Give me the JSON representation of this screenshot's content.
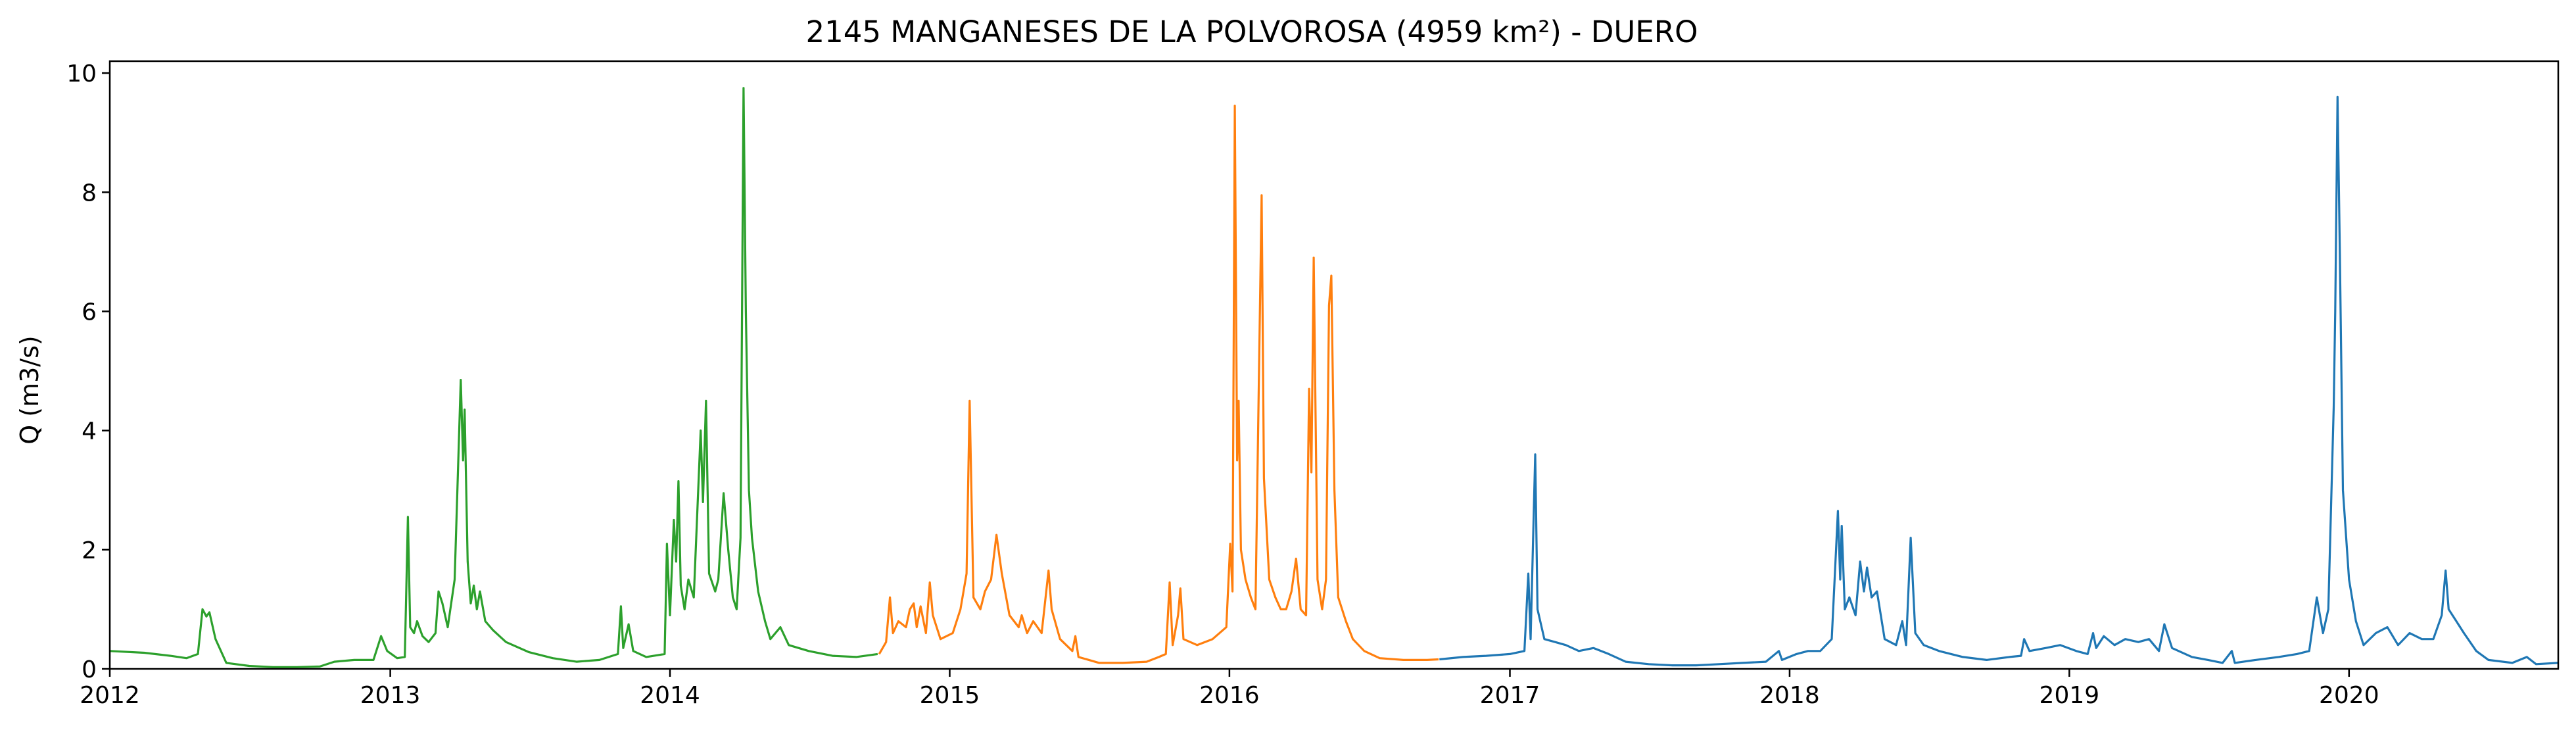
{
  "chart_data": {
    "type": "line",
    "title": "2145 MANGANESES DE LA POLVOROSA (4959 km²) - DUERO",
    "xlabel": "",
    "ylabel": "Q (m3/s)",
    "xlim": [
      "2012-01-01",
      "2020-09-30"
    ],
    "ylim": [
      0,
      10.2
    ],
    "xticks": [
      "2012",
      "2013",
      "2014",
      "2015",
      "2016",
      "2017",
      "2018",
      "2019",
      "2020"
    ],
    "yticks": [
      "0",
      "2",
      "4",
      "6",
      "8",
      "10"
    ],
    "grid": false,
    "series": [
      {
        "color": "#2ca02c",
        "points": [
          [
            "2012-01-01",
            0.3
          ],
          [
            "2012-02-15",
            0.27
          ],
          [
            "2012-03-20",
            0.22
          ],
          [
            "2012-04-10",
            0.18
          ],
          [
            "2012-04-25",
            0.25
          ],
          [
            "2012-05-01",
            1.0
          ],
          [
            "2012-05-06",
            0.88
          ],
          [
            "2012-05-10",
            0.95
          ],
          [
            "2012-05-18",
            0.5
          ],
          [
            "2012-06-01",
            0.1
          ],
          [
            "2012-07-01",
            0.05
          ],
          [
            "2012-08-01",
            0.03
          ],
          [
            "2012-09-01",
            0.03
          ],
          [
            "2012-10-01",
            0.04
          ],
          [
            "2012-10-20",
            0.12
          ],
          [
            "2012-11-15",
            0.15
          ],
          [
            "2012-12-10",
            0.15
          ],
          [
            "2012-12-20",
            0.55
          ],
          [
            "2012-12-28",
            0.3
          ],
          [
            "2013-01-10",
            0.18
          ],
          [
            "2013-01-20",
            0.2
          ],
          [
            "2013-01-24",
            2.55
          ],
          [
            "2013-01-27",
            0.7
          ],
          [
            "2013-02-01",
            0.6
          ],
          [
            "2013-02-05",
            0.8
          ],
          [
            "2013-02-12",
            0.55
          ],
          [
            "2013-02-20",
            0.45
          ],
          [
            "2013-03-01",
            0.6
          ],
          [
            "2013-03-05",
            1.3
          ],
          [
            "2013-03-10",
            1.1
          ],
          [
            "2013-03-17",
            0.7
          ],
          [
            "2013-03-26",
            1.5
          ],
          [
            "2013-04-03",
            4.85
          ],
          [
            "2013-04-06",
            3.5
          ],
          [
            "2013-04-08",
            4.35
          ],
          [
            "2013-04-12",
            1.8
          ],
          [
            "2013-04-16",
            1.1
          ],
          [
            "2013-04-20",
            1.4
          ],
          [
            "2013-04-24",
            1.0
          ],
          [
            "2013-04-28",
            1.3
          ],
          [
            "2013-05-05",
            0.8
          ],
          [
            "2013-05-15",
            0.65
          ],
          [
            "2013-06-01",
            0.45
          ],
          [
            "2013-07-01",
            0.28
          ],
          [
            "2013-08-01",
            0.18
          ],
          [
            "2013-09-01",
            0.12
          ],
          [
            "2013-10-01",
            0.15
          ],
          [
            "2013-10-25",
            0.25
          ],
          [
            "2013-10-29",
            1.05
          ],
          [
            "2013-11-01",
            0.35
          ],
          [
            "2013-11-08",
            0.75
          ],
          [
            "2013-11-14",
            0.3
          ],
          [
            "2013-12-01",
            0.2
          ],
          [
            "2013-12-25",
            0.25
          ],
          [
            "2013-12-28",
            2.1
          ],
          [
            "2014-01-01",
            0.9
          ],
          [
            "2014-01-06",
            2.5
          ],
          [
            "2014-01-09",
            1.8
          ],
          [
            "2014-01-12",
            3.15
          ],
          [
            "2014-01-15",
            1.4
          ],
          [
            "2014-01-20",
            1.0
          ],
          [
            "2014-01-25",
            1.5
          ],
          [
            "2014-02-01",
            1.2
          ],
          [
            "2014-02-10",
            4.0
          ],
          [
            "2014-02-13",
            2.8
          ],
          [
            "2014-02-17",
            4.5
          ],
          [
            "2014-02-21",
            1.6
          ],
          [
            "2014-03-01",
            1.3
          ],
          [
            "2014-03-05",
            1.5
          ],
          [
            "2014-03-12",
            2.95
          ],
          [
            "2014-03-18",
            2.0
          ],
          [
            "2014-03-24",
            1.2
          ],
          [
            "2014-03-29",
            1.0
          ],
          [
            "2014-04-03",
            2.2
          ],
          [
            "2014-04-07",
            9.75
          ],
          [
            "2014-04-10",
            6.0
          ],
          [
            "2014-04-14",
            3.0
          ],
          [
            "2014-04-18",
            2.2
          ],
          [
            "2014-04-26",
            1.3
          ],
          [
            "2014-05-05",
            0.8
          ],
          [
            "2014-05-12",
            0.5
          ],
          [
            "2014-05-25",
            0.7
          ],
          [
            "2014-06-05",
            0.4
          ],
          [
            "2014-07-01",
            0.3
          ],
          [
            "2014-08-01",
            0.22
          ],
          [
            "2014-09-01",
            0.2
          ],
          [
            "2014-09-29",
            0.25
          ]
        ]
      },
      {
        "color": "#ff7f0e",
        "points": [
          [
            "2014-10-01",
            0.25
          ],
          [
            "2014-10-10",
            0.45
          ],
          [
            "2014-10-15",
            1.2
          ],
          [
            "2014-10-19",
            0.6
          ],
          [
            "2014-10-26",
            0.8
          ],
          [
            "2014-11-05",
            0.7
          ],
          [
            "2014-11-10",
            1.0
          ],
          [
            "2014-11-15",
            1.1
          ],
          [
            "2014-11-19",
            0.7
          ],
          [
            "2014-11-24",
            1.05
          ],
          [
            "2014-12-01",
            0.6
          ],
          [
            "2014-12-06",
            1.45
          ],
          [
            "2014-12-10",
            0.9
          ],
          [
            "2014-12-20",
            0.5
          ],
          [
            "2015-01-05",
            0.6
          ],
          [
            "2015-01-15",
            1.0
          ],
          [
            "2015-01-23",
            1.6
          ],
          [
            "2015-01-27",
            4.5
          ],
          [
            "2015-02-01",
            1.2
          ],
          [
            "2015-02-10",
            1.0
          ],
          [
            "2015-02-16",
            1.3
          ],
          [
            "2015-02-24",
            1.5
          ],
          [
            "2015-03-03",
            2.25
          ],
          [
            "2015-03-10",
            1.6
          ],
          [
            "2015-03-20",
            0.9
          ],
          [
            "2015-04-01",
            0.7
          ],
          [
            "2015-04-05",
            0.9
          ],
          [
            "2015-04-12",
            0.6
          ],
          [
            "2015-04-20",
            0.8
          ],
          [
            "2015-05-01",
            0.6
          ],
          [
            "2015-05-10",
            1.65
          ],
          [
            "2015-05-14",
            1.0
          ],
          [
            "2015-05-25",
            0.5
          ],
          [
            "2015-06-10",
            0.3
          ],
          [
            "2015-06-14",
            0.55
          ],
          [
            "2015-06-18",
            0.2
          ],
          [
            "2015-07-15",
            0.1
          ],
          [
            "2015-08-15",
            0.1
          ],
          [
            "2015-09-15",
            0.12
          ],
          [
            "2015-10-01",
            0.2
          ],
          [
            "2015-10-10",
            0.25
          ],
          [
            "2015-10-15",
            1.45
          ],
          [
            "2015-10-19",
            0.4
          ],
          [
            "2015-10-26",
            0.9
          ],
          [
            "2015-10-29",
            1.35
          ],
          [
            "2015-11-02",
            0.5
          ],
          [
            "2015-11-20",
            0.4
          ],
          [
            "2015-12-10",
            0.5
          ],
          [
            "2015-12-28",
            0.7
          ],
          [
            "2016-01-02",
            2.1
          ],
          [
            "2016-01-05",
            1.3
          ],
          [
            "2016-01-08",
            9.45
          ],
          [
            "2016-01-11",
            3.5
          ],
          [
            "2016-01-13",
            4.5
          ],
          [
            "2016-01-16",
            2.0
          ],
          [
            "2016-01-22",
            1.5
          ],
          [
            "2016-01-29",
            1.2
          ],
          [
            "2016-02-04",
            1.0
          ],
          [
            "2016-02-12",
            7.95
          ],
          [
            "2016-02-15",
            3.2
          ],
          [
            "2016-02-22",
            1.5
          ],
          [
            "2016-03-01",
            1.2
          ],
          [
            "2016-03-08",
            1.0
          ],
          [
            "2016-03-15",
            1.0
          ],
          [
            "2016-03-22",
            1.3
          ],
          [
            "2016-03-28",
            1.85
          ],
          [
            "2016-04-03",
            1.0
          ],
          [
            "2016-04-10",
            0.9
          ],
          [
            "2016-04-14",
            4.7
          ],
          [
            "2016-04-17",
            3.3
          ],
          [
            "2016-04-20",
            6.9
          ],
          [
            "2016-04-25",
            1.5
          ],
          [
            "2016-05-01",
            1.0
          ],
          [
            "2016-05-06",
            1.5
          ],
          [
            "2016-05-10",
            6.1
          ],
          [
            "2016-05-13",
            6.6
          ],
          [
            "2016-05-17",
            3.0
          ],
          [
            "2016-05-22",
            1.2
          ],
          [
            "2016-06-01",
            0.8
          ],
          [
            "2016-06-10",
            0.5
          ],
          [
            "2016-06-25",
            0.3
          ],
          [
            "2016-07-15",
            0.18
          ],
          [
            "2016-08-15",
            0.15
          ],
          [
            "2016-09-15",
            0.15
          ],
          [
            "2016-09-30",
            0.16
          ]
        ]
      },
      {
        "color": "#1f77b4",
        "points": [
          [
            "2016-10-01",
            0.16
          ],
          [
            "2016-11-01",
            0.2
          ],
          [
            "2016-12-01",
            0.22
          ],
          [
            "2017-01-01",
            0.25
          ],
          [
            "2017-01-20",
            0.3
          ],
          [
            "2017-01-25",
            1.6
          ],
          [
            "2017-01-28",
            0.5
          ],
          [
            "2017-02-03",
            3.6
          ],
          [
            "2017-02-06",
            1.0
          ],
          [
            "2017-02-15",
            0.5
          ],
          [
            "2017-03-01",
            0.45
          ],
          [
            "2017-03-15",
            0.4
          ],
          [
            "2017-04-01",
            0.3
          ],
          [
            "2017-04-20",
            0.35
          ],
          [
            "2017-05-10",
            0.25
          ],
          [
            "2017-06-01",
            0.12
          ],
          [
            "2017-07-01",
            0.08
          ],
          [
            "2017-08-01",
            0.06
          ],
          [
            "2017-09-01",
            0.06
          ],
          [
            "2017-10-01",
            0.08
          ],
          [
            "2017-11-01",
            0.1
          ],
          [
            "2017-12-01",
            0.12
          ],
          [
            "2017-12-18",
            0.3
          ],
          [
            "2017-12-22",
            0.15
          ],
          [
            "2018-01-10",
            0.25
          ],
          [
            "2018-01-25",
            0.3
          ],
          [
            "2018-02-10",
            0.3
          ],
          [
            "2018-02-25",
            0.5
          ],
          [
            "2018-03-05",
            2.65
          ],
          [
            "2018-03-08",
            1.5
          ],
          [
            "2018-03-10",
            2.4
          ],
          [
            "2018-03-14",
            1.0
          ],
          [
            "2018-03-20",
            1.2
          ],
          [
            "2018-03-28",
            0.9
          ],
          [
            "2018-04-03",
            1.8
          ],
          [
            "2018-04-08",
            1.3
          ],
          [
            "2018-04-12",
            1.7
          ],
          [
            "2018-04-18",
            1.2
          ],
          [
            "2018-04-25",
            1.3
          ],
          [
            "2018-05-05",
            0.5
          ],
          [
            "2018-05-20",
            0.4
          ],
          [
            "2018-05-28",
            0.8
          ],
          [
            "2018-06-02",
            0.4
          ],
          [
            "2018-06-08",
            2.2
          ],
          [
            "2018-06-14",
            0.6
          ],
          [
            "2018-06-25",
            0.4
          ],
          [
            "2018-07-15",
            0.3
          ],
          [
            "2018-08-15",
            0.2
          ],
          [
            "2018-09-15",
            0.15
          ],
          [
            "2018-10-15",
            0.2
          ],
          [
            "2018-10-30",
            0.22
          ],
          [
            "2018-11-03",
            0.5
          ],
          [
            "2018-11-10",
            0.3
          ],
          [
            "2018-12-01",
            0.35
          ],
          [
            "2018-12-20",
            0.4
          ],
          [
            "2019-01-10",
            0.3
          ],
          [
            "2019-01-25",
            0.25
          ],
          [
            "2019-02-01",
            0.6
          ],
          [
            "2019-02-05",
            0.35
          ],
          [
            "2019-02-15",
            0.55
          ],
          [
            "2019-03-01",
            0.4
          ],
          [
            "2019-03-15",
            0.5
          ],
          [
            "2019-04-01",
            0.45
          ],
          [
            "2019-04-15",
            0.5
          ],
          [
            "2019-04-28",
            0.3
          ],
          [
            "2019-05-05",
            0.75
          ],
          [
            "2019-05-15",
            0.35
          ],
          [
            "2019-06-10",
            0.2
          ],
          [
            "2019-07-01",
            0.15
          ],
          [
            "2019-07-20",
            0.1
          ],
          [
            "2019-08-01",
            0.3
          ],
          [
            "2019-08-05",
            0.1
          ],
          [
            "2019-09-01",
            0.15
          ],
          [
            "2019-10-01",
            0.2
          ],
          [
            "2019-10-25",
            0.25
          ],
          [
            "2019-11-10",
            0.3
          ],
          [
            "2019-11-20",
            1.2
          ],
          [
            "2019-11-28",
            0.6
          ],
          [
            "2019-12-05",
            1.0
          ],
          [
            "2019-12-12",
            4.4
          ],
          [
            "2019-12-14",
            6.0
          ],
          [
            "2019-12-17",
            9.6
          ],
          [
            "2019-12-20",
            7.0
          ],
          [
            "2019-12-24",
            3.0
          ],
          [
            "2020-01-01",
            1.5
          ],
          [
            "2020-01-10",
            0.8
          ],
          [
            "2020-01-20",
            0.4
          ],
          [
            "2020-02-05",
            0.6
          ],
          [
            "2020-02-20",
            0.7
          ],
          [
            "2020-03-05",
            0.4
          ],
          [
            "2020-03-20",
            0.6
          ],
          [
            "2020-04-05",
            0.5
          ],
          [
            "2020-04-20",
            0.5
          ],
          [
            "2020-05-01",
            0.9
          ],
          [
            "2020-05-06",
            1.65
          ],
          [
            "2020-05-10",
            1.0
          ],
          [
            "2020-05-20",
            0.8
          ],
          [
            "2020-05-30",
            0.6
          ],
          [
            "2020-06-15",
            0.3
          ],
          [
            "2020-07-01",
            0.15
          ],
          [
            "2020-08-01",
            0.1
          ],
          [
            "2020-08-20",
            0.2
          ],
          [
            "2020-09-01",
            0.08
          ],
          [
            "2020-09-30",
            0.1
          ]
        ]
      }
    ]
  }
}
